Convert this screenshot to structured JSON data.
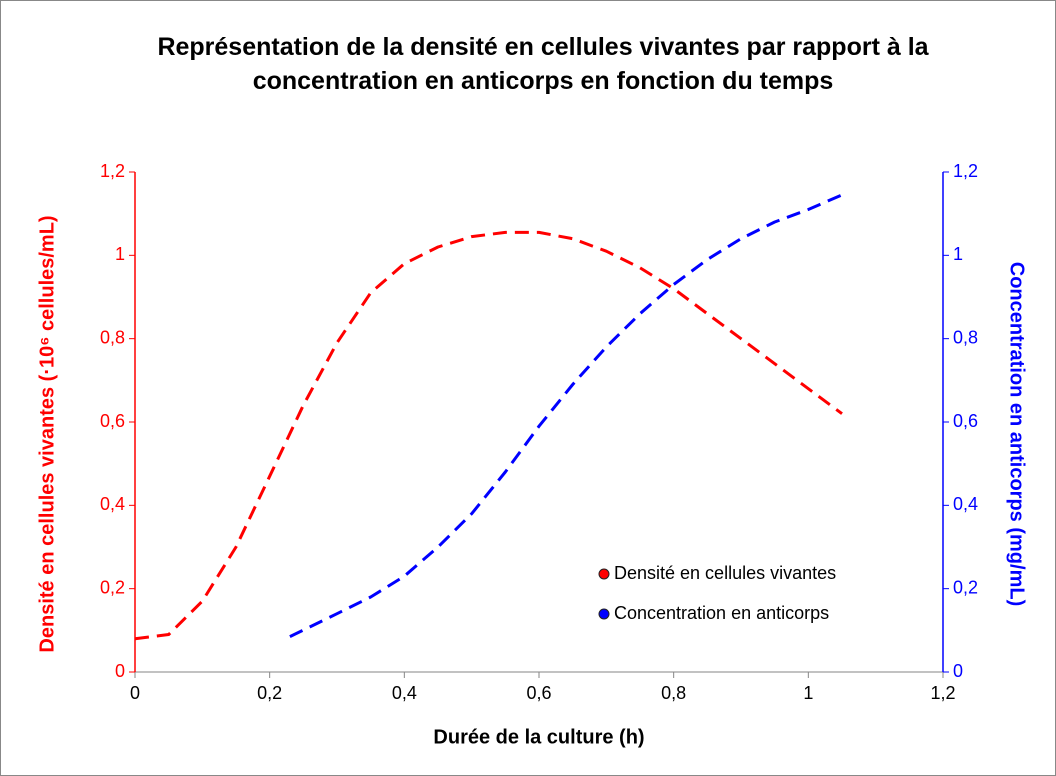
{
  "chart_data": {
    "type": "line",
    "title": "Représentation de la densité en cellules vivantes par rapport à la concentration en anticorps en fonction du temps",
    "xlabel": "Durée de la culture (h)",
    "ylabel": "Densité en cellules vivantes (·10⁶ cellules/mL)",
    "y2label": "Concentration en anticorps (mg/mL)",
    "xlim": [
      0,
      1.2
    ],
    "ylim": [
      0,
      1.2
    ],
    "y2lim": [
      0,
      1.2
    ],
    "xticks": [
      0,
      {
        "value": 0.2,
        "label": "0,2"
      },
      {
        "value": 0.4,
        "label": "0,4"
      },
      {
        "value": 0.6,
        "label": "0,6"
      },
      {
        "value": 0.8,
        "label": "0,8"
      },
      1,
      {
        "value": 1.2,
        "label": "1,2"
      }
    ],
    "yticks": [
      0,
      {
        "value": 0.2,
        "label": "0,2"
      },
      {
        "value": 0.4,
        "label": "0,4"
      },
      {
        "value": 0.6,
        "label": "0,6"
      },
      {
        "value": 0.8,
        "label": "0,8"
      },
      1,
      {
        "value": 1.2,
        "label": "1,2"
      }
    ],
    "y2ticks": [
      0,
      {
        "value": 0.2,
        "label": "0,2"
      },
      {
        "value": 0.4,
        "label": "0,4"
      },
      {
        "value": 0.6,
        "label": "0,6"
      },
      {
        "value": 0.8,
        "label": "0,8"
      },
      1,
      {
        "value": 1.2,
        "label": "1,2"
      }
    ],
    "ycolor": "#ff0000",
    "y2color": "#0000ff",
    "series": [
      {
        "name": "Densité en cellules vivantes",
        "color": "#ff0000",
        "axis": "y",
        "x": [
          0,
          0.05,
          0.1,
          0.15,
          0.2,
          0.25,
          0.3,
          0.35,
          0.4,
          0.45,
          0.5,
          0.55,
          0.6,
          0.65,
          0.7,
          0.75,
          0.8,
          0.85,
          0.9,
          0.95,
          1.0,
          1.05
        ],
        "values": [
          0.08,
          0.09,
          0.17,
          0.3,
          0.47,
          0.64,
          0.79,
          0.91,
          0.98,
          1.02,
          1.045,
          1.055,
          1.055,
          1.04,
          1.01,
          0.97,
          0.92,
          0.86,
          0.8,
          0.74,
          0.68,
          0.62
        ]
      },
      {
        "name": "Concentration en anticorps",
        "color": "#0000ff",
        "axis": "y2",
        "x": [
          0.23,
          0.3,
          0.35,
          0.4,
          0.45,
          0.5,
          0.55,
          0.6,
          0.65,
          0.7,
          0.75,
          0.8,
          0.85,
          0.9,
          0.95,
          1.0,
          1.05
        ],
        "values": [
          0.085,
          0.14,
          0.18,
          0.23,
          0.3,
          0.38,
          0.48,
          0.59,
          0.69,
          0.78,
          0.86,
          0.93,
          0.99,
          1.04,
          1.08,
          1.11,
          1.145
        ]
      }
    ]
  }
}
